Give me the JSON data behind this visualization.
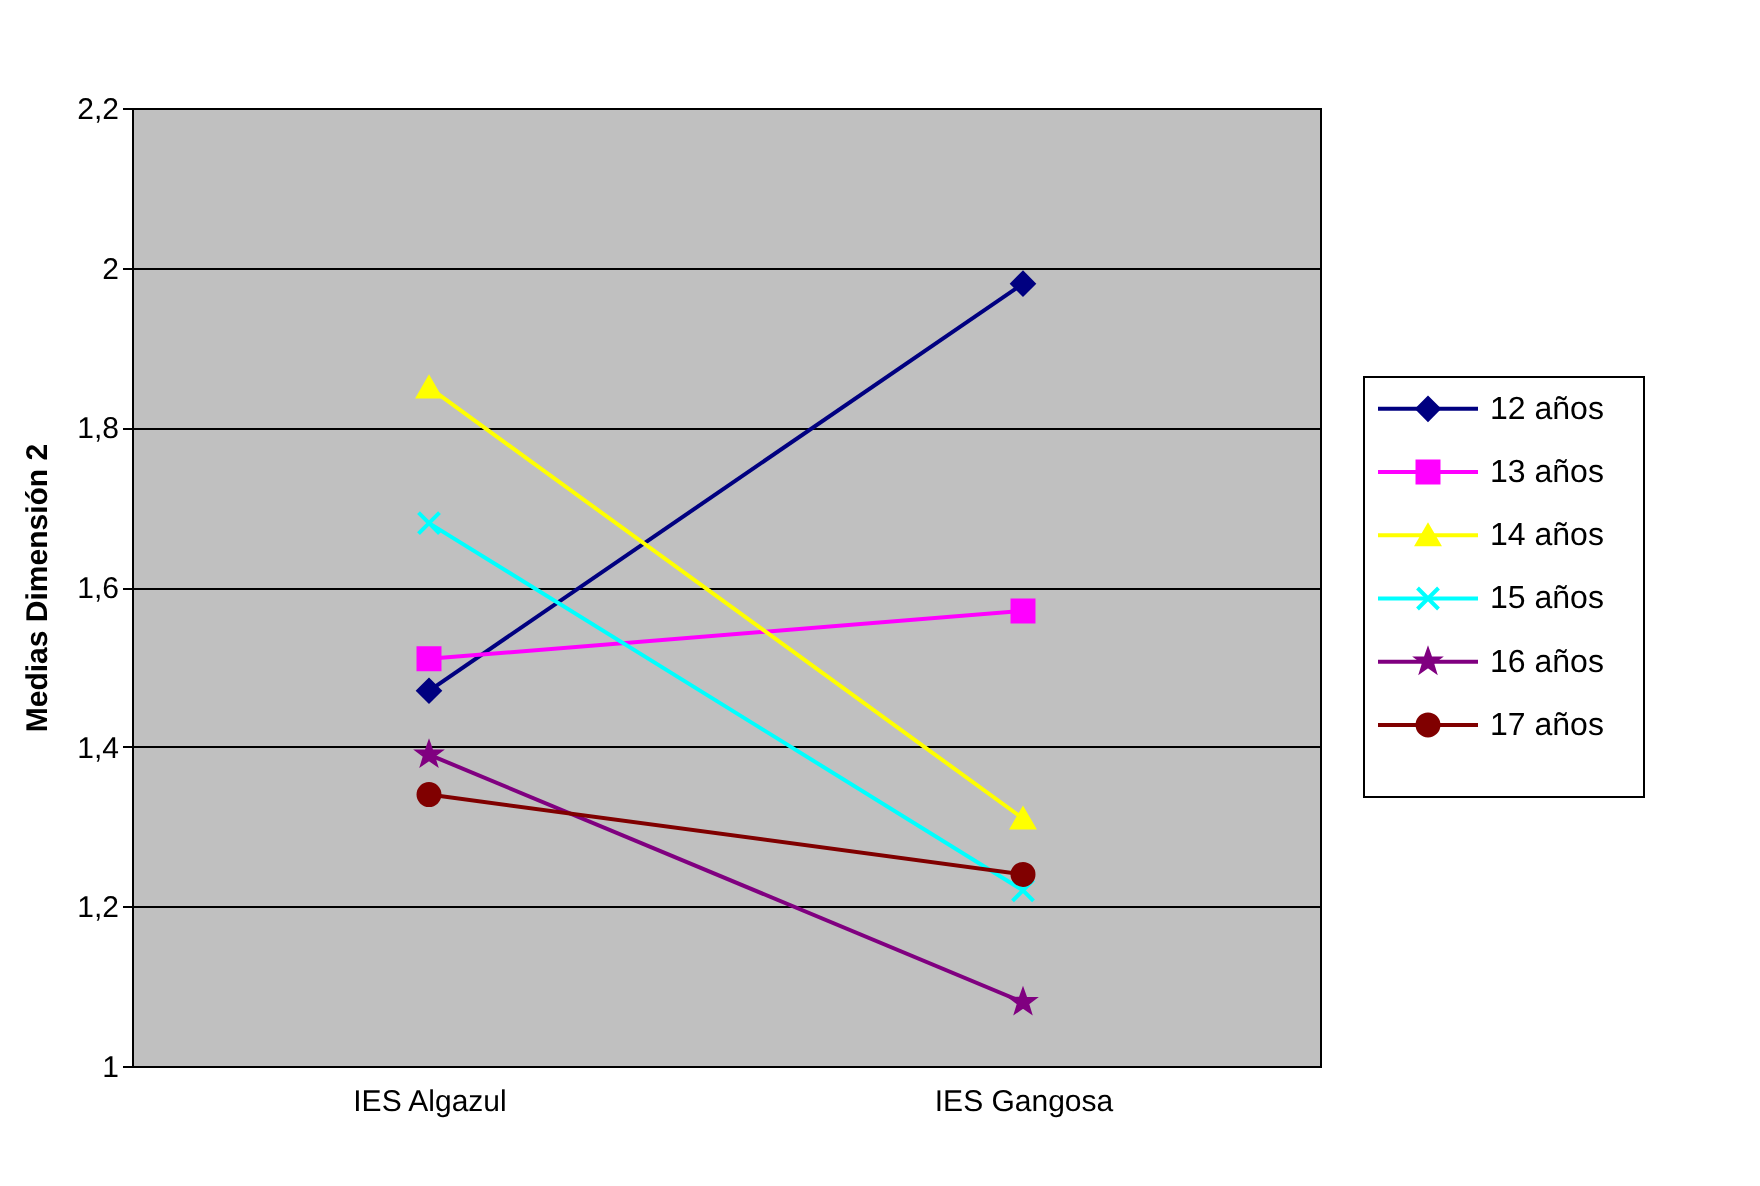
{
  "chart_data": {
    "type": "line",
    "ylabel": "Medias Dimensión 2",
    "categories": [
      "IES Algazul",
      "IES Gangosa"
    ],
    "series": [
      {
        "name": "12 años",
        "color": "#000080",
        "marker": "diamond",
        "values": [
          1.47,
          1.98
        ]
      },
      {
        "name": "13 años",
        "color": "#ff00ff",
        "marker": "square",
        "values": [
          1.51,
          1.57
        ]
      },
      {
        "name": "14 años",
        "color": "#ffff00",
        "marker": "triangle",
        "values": [
          1.85,
          1.31
        ]
      },
      {
        "name": "15 años",
        "color": "#00ffff",
        "marker": "cross",
        "values": [
          1.68,
          1.22
        ]
      },
      {
        "name": "16 años",
        "color": "#800080",
        "marker": "star",
        "values": [
          1.39,
          1.08
        ]
      },
      {
        "name": "17 años",
        "color": "#800000",
        "marker": "circle",
        "values": [
          1.34,
          1.24
        ]
      }
    ],
    "ylim": [
      1,
      2.2
    ],
    "yticks": [
      1,
      {
        "value": 1.2,
        "label": "1,2"
      },
      {
        "value": 1.4,
        "label": "1,4"
      },
      {
        "value": 1.6,
        "label": "1,6"
      },
      {
        "value": 1.8,
        "label": "1,8"
      },
      2,
      {
        "value": 2.2,
        "label": "2,2"
      }
    ],
    "grid": "y",
    "legend": "right",
    "line_style": "solid"
  }
}
